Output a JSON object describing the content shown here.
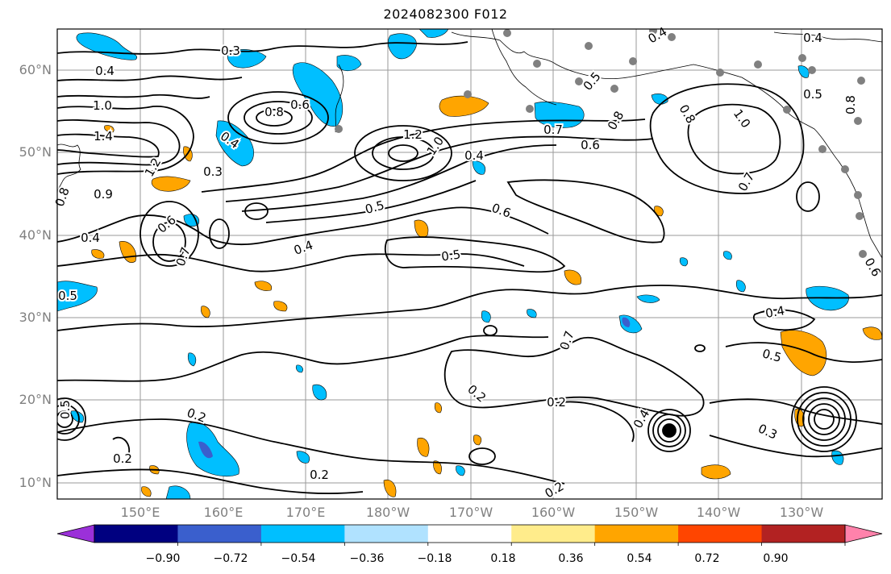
{
  "title": "2024082300 F012",
  "map": {
    "lat_labels": [
      "60°N",
      "50°N",
      "40°N",
      "30°N",
      "20°N",
      "10°N"
    ],
    "lon_labels": [
      "150°E",
      "160°E",
      "170°E",
      "180°W",
      "170°W",
      "160°W",
      "150°W",
      "140°W",
      "130°W"
    ],
    "contour_labels": [
      {
        "text": "0.3"
      },
      {
        "text": "0.4"
      },
      {
        "text": "1.0"
      },
      {
        "text": "1.4"
      },
      {
        "text": "1.2"
      },
      {
        "text": "0.8"
      },
      {
        "text": "0.6"
      },
      {
        "text": "0.4"
      },
      {
        "text": "0.3"
      },
      {
        "text": "0.9"
      },
      {
        "text": "0.8"
      },
      {
        "text": "1.2"
      },
      {
        "text": "1.0"
      },
      {
        "text": "0.7"
      },
      {
        "text": "0.6"
      },
      {
        "text": "0.4"
      },
      {
        "text": "0.5"
      },
      {
        "text": "0.4"
      },
      {
        "text": "0.6"
      },
      {
        "text": "0.5"
      },
      {
        "text": "0.4"
      },
      {
        "text": "0.5"
      },
      {
        "text": "0.4"
      },
      {
        "text": "0.8"
      },
      {
        "text": "0.5"
      },
      {
        "text": "0.8"
      },
      {
        "text": "1.0"
      },
      {
        "text": "0.7"
      },
      {
        "text": "0.4"
      },
      {
        "text": "0.5"
      },
      {
        "text": "0.8"
      },
      {
        "text": "0.4"
      },
      {
        "text": "0.5"
      },
      {
        "text": "0.2"
      },
      {
        "text": "0.2"
      },
      {
        "text": "0.7"
      },
      {
        "text": "0.2"
      },
      {
        "text": "0.4"
      },
      {
        "text": "0.3"
      },
      {
        "text": "0.2"
      },
      {
        "text": "0.2"
      },
      {
        "text": "0.2"
      },
      {
        "text": "0.5"
      },
      {
        "text": "0.6"
      },
      {
        "text": "0.7"
      },
      {
        "text": "0.6"
      }
    ]
  },
  "colorbar": {
    "tick_labels": [
      "−0.90",
      "−0.72",
      "−0.54",
      "−0.36",
      "−0.18",
      "0.18",
      "0.36",
      "0.54",
      "0.72",
      "0.90"
    ],
    "colors": [
      "#9b30d9",
      "#000080",
      "#3a5fcd",
      "#00bfff",
      "#b0e2ff",
      "#ffffff",
      "#ffec8b",
      "#ffa500",
      "#ff4500",
      "#b22222",
      "#ff82ab"
    ]
  }
}
